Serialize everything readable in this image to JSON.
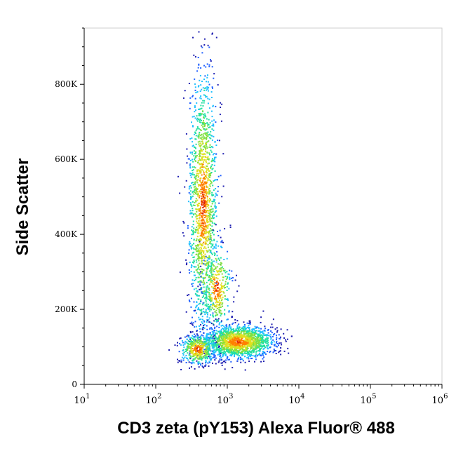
{
  "chart_data": {
    "type": "scatter",
    "title": "",
    "xlabel": "CD3 zeta (pY153) Alexa Fluor® 488",
    "ylabel": "Side Scatter",
    "x_scale": "log",
    "xlim": [
      10,
      1000000
    ],
    "ylim": [
      0,
      950000
    ],
    "x_ticks": [
      {
        "value": 10,
        "base": "10",
        "exp": "1"
      },
      {
        "value": 100,
        "base": "10",
        "exp": "2"
      },
      {
        "value": 1000,
        "base": "10",
        "exp": "3"
      },
      {
        "value": 10000,
        "base": "10",
        "exp": "4"
      },
      {
        "value": 100000,
        "base": "10",
        "exp": "5"
      },
      {
        "value": 1000000,
        "base": "10",
        "exp": "6"
      }
    ],
    "y_ticks": [
      {
        "value": 0,
        "label": "0"
      },
      {
        "value": 200000,
        "label": "200K"
      },
      {
        "value": 400000,
        "label": "400K"
      },
      {
        "value": 600000,
        "label": "600K"
      },
      {
        "value": 800000,
        "label": "800K"
      }
    ],
    "grid": false,
    "legend": "none",
    "colormap": [
      "#1f1fb0",
      "#2060ff",
      "#20c0ff",
      "#20e0a0",
      "#80e040",
      "#e0e020",
      "#ff8000",
      "#e02000"
    ],
    "populations": [
      {
        "x_center": 450,
        "y_center": 480000,
        "x_spread_decades": 0.1,
        "y_spread": 180000,
        "count": 1500
      },
      {
        "x_center": 700,
        "y_center": 260000,
        "x_spread_decades": 0.1,
        "y_spread": 60000,
        "count": 400
      },
      {
        "x_center": 1400,
        "y_center": 115000,
        "x_spread_decades": 0.25,
        "y_spread": 22000,
        "count": 1600
      },
      {
        "x_center": 380,
        "y_center": 95000,
        "x_spread_decades": 0.12,
        "y_spread": 20000,
        "count": 450
      }
    ]
  }
}
